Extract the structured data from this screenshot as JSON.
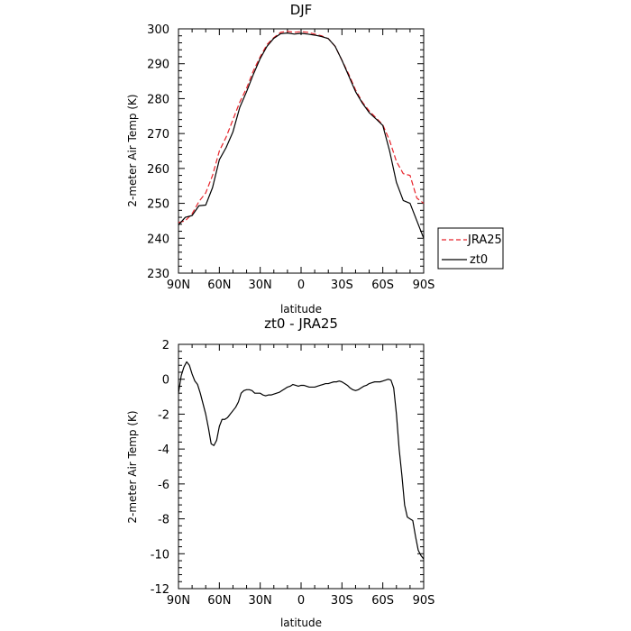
{
  "chart_data": [
    {
      "type": "line",
      "title": "DJF",
      "xlabel": "latitude",
      "ylabel": "2-meter Air Temp (K)",
      "xlim": [
        90,
        -90
      ],
      "ylim": [
        230,
        300
      ],
      "xticks": [
        90,
        60,
        30,
        0,
        -30,
        -60,
        -90
      ],
      "xtick_labels": [
        "90N",
        "60N",
        "30N",
        "0",
        "30S",
        "60S",
        "90S"
      ],
      "yticks": [
        230,
        240,
        250,
        260,
        270,
        280,
        290,
        300
      ],
      "ytick_labels": [
        "230",
        "240",
        "250",
        "260",
        "270",
        "280",
        "290",
        "300"
      ],
      "legend_position": "right",
      "series": [
        {
          "name": "JRA25",
          "color": "#e8232a",
          "dash": "dashed",
          "x": [
            90,
            85,
            80,
            75,
            70,
            65,
            60,
            55,
            50,
            45,
            40,
            35,
            30,
            25,
            20,
            15,
            10,
            5,
            0,
            -5,
            -10,
            -15,
            -20,
            -25,
            -30,
            -35,
            -40,
            -45,
            -50,
            -55,
            -60,
            -65,
            -70,
            -75,
            -80,
            -85,
            -90
          ],
          "y": [
            244.5,
            245.0,
            247.0,
            250.5,
            253.0,
            258.0,
            265.0,
            269.0,
            274.0,
            279.0,
            283.0,
            288.0,
            292.0,
            295.5,
            297.5,
            299.0,
            299.3,
            299.0,
            299.2,
            299.0,
            298.5,
            298.0,
            297.2,
            295.0,
            291.0,
            287.0,
            282.5,
            279.0,
            276.5,
            274.5,
            272.5,
            268.0,
            262.0,
            258.5,
            258.0,
            251.5,
            250.0
          ]
        },
        {
          "name": "zt0",
          "color": "#000000",
          "dash": "solid",
          "x": [
            90,
            85,
            80,
            75,
            70,
            65,
            60,
            55,
            50,
            45,
            40,
            35,
            30,
            25,
            20,
            15,
            10,
            5,
            0,
            -5,
            -10,
            -15,
            -20,
            -25,
            -30,
            -35,
            -40,
            -45,
            -50,
            -55,
            -60,
            -65,
            -70,
            -75,
            -80,
            -85,
            -90
          ],
          "y": [
            243.8,
            246.0,
            246.5,
            249.3,
            249.5,
            254.5,
            262.5,
            266.0,
            270.5,
            277.5,
            282.0,
            287.0,
            291.5,
            295.0,
            297.3,
            298.6,
            298.8,
            298.5,
            298.7,
            298.5,
            298.2,
            297.8,
            297.2,
            295.0,
            291.0,
            286.5,
            282.0,
            278.7,
            276.0,
            274.2,
            272.3,
            265.0,
            256.0,
            250.8,
            250.0,
            245.0,
            240.0
          ]
        }
      ]
    },
    {
      "type": "line",
      "title": "zt0 - JRA25",
      "xlabel": "latitude",
      "ylabel": "2-meter Air Temp (K)",
      "xlim": [
        90,
        -90
      ],
      "ylim": [
        -12,
        2
      ],
      "xticks": [
        90,
        60,
        30,
        0,
        -30,
        -60,
        -90
      ],
      "xtick_labels": [
        "90N",
        "60N",
        "30N",
        "0",
        "30S",
        "60S",
        "90S"
      ],
      "yticks": [
        -12,
        -10,
        -8,
        -6,
        -4,
        -2,
        0,
        2
      ],
      "ytick_labels": [
        "-12",
        "-10",
        "-8",
        "-6",
        "-4",
        "-2",
        "0",
        "2"
      ],
      "series": [
        {
          "name": "",
          "color": "#000000",
          "dash": "solid",
          "x": [
            90,
            88,
            86,
            84,
            82,
            80,
            78,
            76,
            74,
            72,
            70,
            68,
            66,
            64,
            62,
            60,
            58,
            56,
            54,
            52,
            50,
            48,
            46,
            44,
            42,
            40,
            38,
            36,
            34,
            32,
            30,
            28,
            26,
            24,
            22,
            20,
            18,
            16,
            14,
            12,
            10,
            8,
            6,
            4,
            2,
            0,
            -2,
            -4,
            -6,
            -8,
            -10,
            -12,
            -14,
            -16,
            -18,
            -20,
            -22,
            -24,
            -26,
            -28,
            -30,
            -32,
            -34,
            -36,
            -38,
            -40,
            -42,
            -44,
            -46,
            -48,
            -50,
            -52,
            -54,
            -56,
            -58,
            -60,
            -62,
            -64,
            -66,
            -68,
            -70,
            -72,
            -74,
            -76,
            -78,
            -80,
            -82,
            -84,
            -86,
            -88,
            -90
          ],
          "y": [
            -0.8,
            0.2,
            0.7,
            1.0,
            0.8,
            0.3,
            -0.1,
            -0.3,
            -0.8,
            -1.4,
            -2.0,
            -2.8,
            -3.7,
            -3.8,
            -3.5,
            -2.7,
            -2.3,
            -2.3,
            -2.2,
            -2.0,
            -1.8,
            -1.6,
            -1.3,
            -0.8,
            -0.65,
            -0.6,
            -0.6,
            -0.65,
            -0.8,
            -0.8,
            -0.8,
            -0.9,
            -0.95,
            -0.9,
            -0.9,
            -0.85,
            -0.8,
            -0.75,
            -0.65,
            -0.55,
            -0.45,
            -0.4,
            -0.3,
            -0.35,
            -0.4,
            -0.35,
            -0.35,
            -0.4,
            -0.45,
            -0.45,
            -0.45,
            -0.4,
            -0.35,
            -0.3,
            -0.25,
            -0.25,
            -0.2,
            -0.15,
            -0.15,
            -0.1,
            -0.15,
            -0.25,
            -0.35,
            -0.5,
            -0.6,
            -0.65,
            -0.6,
            -0.5,
            -0.4,
            -0.35,
            -0.25,
            -0.2,
            -0.15,
            -0.15,
            -0.15,
            -0.1,
            -0.05,
            0.0,
            -0.05,
            -0.5,
            -2.0,
            -4.0,
            -5.5,
            -7.2,
            -7.9,
            -8.0,
            -8.1,
            -9.0,
            -9.8,
            -10.1,
            -10.3
          ]
        }
      ]
    }
  ]
}
